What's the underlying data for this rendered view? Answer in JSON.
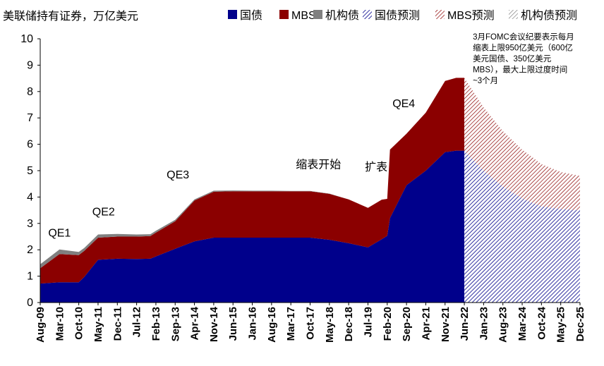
{
  "chart_data": {
    "type": "area",
    "title": "美联储持有证券，万亿美元",
    "xlabel": "",
    "ylabel": "",
    "ylim": [
      0,
      10
    ],
    "yticks": [
      0,
      1,
      2,
      3,
      4,
      5,
      6,
      7,
      8,
      9,
      10
    ],
    "grid": false,
    "legend_position": "top",
    "x_tick_labels": [
      "Aug-09",
      "Mar-10",
      "Oct-10",
      "May-11",
      "Dec-11",
      "Jul-12",
      "Feb-13",
      "Sep-13",
      "Apr-14",
      "Nov-14",
      "Jun-15",
      "Jan-16",
      "Aug-16",
      "Mar-17",
      "Oct-17",
      "May-18",
      "Dec-18",
      "Jul-19",
      "Feb-20",
      "Sep-20",
      "Apr-21",
      "Nov-21",
      "Jun-22",
      "Jan-23",
      "Aug-23",
      "Mar-24",
      "Oct-24",
      "May-25",
      "Dec-25"
    ],
    "x": [
      "Aug-09",
      "Mar-10",
      "Oct-10",
      "Dec-10",
      "May-11",
      "Dec-11",
      "Jul-12",
      "Dec-12",
      "Feb-13",
      "Sep-13",
      "Apr-14",
      "Nov-14",
      "Jun-15",
      "Jan-16",
      "Aug-16",
      "Mar-17",
      "Oct-17",
      "May-18",
      "Dec-18",
      "Jul-19",
      "Dec-19",
      "Feb-20",
      "Mar-20",
      "Sep-20",
      "Apr-21",
      "Nov-21",
      "Mar-22",
      "Jun-22",
      "Jan-23",
      "Aug-23",
      "Mar-24",
      "Oct-24",
      "May-25",
      "Dec-25"
    ],
    "series": [
      {
        "name": "国债",
        "color": "#00008B",
        "pattern": "solid",
        "values": [
          0.72,
          0.77,
          0.77,
          0.97,
          1.62,
          1.66,
          1.65,
          1.66,
          1.75,
          2.04,
          2.32,
          2.46,
          2.46,
          2.46,
          2.46,
          2.46,
          2.46,
          2.38,
          2.25,
          2.09,
          2.4,
          2.53,
          3.2,
          4.45,
          5.0,
          5.7,
          5.76,
          5.76,
          null,
          null,
          null,
          null,
          null,
          null
        ]
      },
      {
        "name": "MBS",
        "color": "#8B0000",
        "pattern": "solid",
        "values": [
          0.58,
          1.07,
          1.03,
          0.99,
          0.84,
          0.84,
          0.85,
          0.86,
          0.9,
          1.04,
          1.55,
          1.74,
          1.76,
          1.76,
          1.76,
          1.76,
          1.76,
          1.74,
          1.66,
          1.5,
          1.5,
          1.4,
          2.6,
          1.95,
          2.2,
          2.7,
          2.76,
          2.76,
          null,
          null,
          null,
          null,
          null,
          null
        ]
      },
      {
        "name": "机构债",
        "color": "#808080",
        "pattern": "solid",
        "values": [
          0.15,
          0.17,
          0.12,
          0.11,
          0.12,
          0.1,
          0.08,
          0.07,
          0.07,
          0.06,
          0.04,
          0.04,
          0.03,
          0.02,
          0.02,
          0.01,
          0.01,
          0.01,
          0.0,
          0.0,
          0.0,
          0.0,
          0.0,
          0.0,
          0.0,
          0.0,
          0.0,
          0.0,
          null,
          null,
          null,
          null,
          null,
          null
        ]
      },
      {
        "name": "国债预测",
        "color": "#00008B",
        "pattern": "hatched",
        "values": [
          null,
          null,
          null,
          null,
          null,
          null,
          null,
          null,
          null,
          null,
          null,
          null,
          null,
          null,
          null,
          null,
          null,
          null,
          null,
          null,
          null,
          null,
          null,
          null,
          null,
          null,
          null,
          5.76,
          5.0,
          4.4,
          3.95,
          3.65,
          3.55,
          3.5
        ]
      },
      {
        "name": "MBS预测",
        "color": "#8B0000",
        "pattern": "hatched",
        "values": [
          null,
          null,
          null,
          null,
          null,
          null,
          null,
          null,
          null,
          null,
          null,
          null,
          null,
          null,
          null,
          null,
          null,
          null,
          null,
          null,
          null,
          null,
          null,
          null,
          null,
          null,
          null,
          2.76,
          2.4,
          2.1,
          1.85,
          1.6,
          1.4,
          1.3
        ]
      },
      {
        "name": "机构债预测",
        "color": "#808080",
        "pattern": "hatched",
        "values": [
          null,
          null,
          null,
          null,
          null,
          null,
          null,
          null,
          null,
          null,
          null,
          null,
          null,
          null,
          null,
          null,
          null,
          null,
          null,
          null,
          null,
          null,
          null,
          null,
          null,
          null,
          null,
          0.0,
          0.0,
          0.0,
          0.0,
          0.0,
          0.0,
          0.0
        ]
      }
    ],
    "annotations": [
      {
        "text": "QE1",
        "x": "Mar-10",
        "y": 2.5
      },
      {
        "text": "QE2",
        "x": "Jul-11",
        "y": 3.3
      },
      {
        "text": "QE3",
        "x": "Oct-13",
        "y": 4.7
      },
      {
        "text": "缩表开始",
        "x": "Jan-18",
        "y": 5.1
      },
      {
        "text": "扩表",
        "x": "Oct-19",
        "y": 5.0
      },
      {
        "text": "QE4",
        "x": "Aug-20",
        "y": 7.4
      },
      {
        "lines": [
          "3月FOMC会议纪要表示每月",
          "缩表上限950亿美元（600亿",
          "美元国债、350亿美元",
          "MBS），最大上限过度时间",
          "~3个月"
        ],
        "x": "Jun-22",
        "y": 10
      }
    ]
  }
}
